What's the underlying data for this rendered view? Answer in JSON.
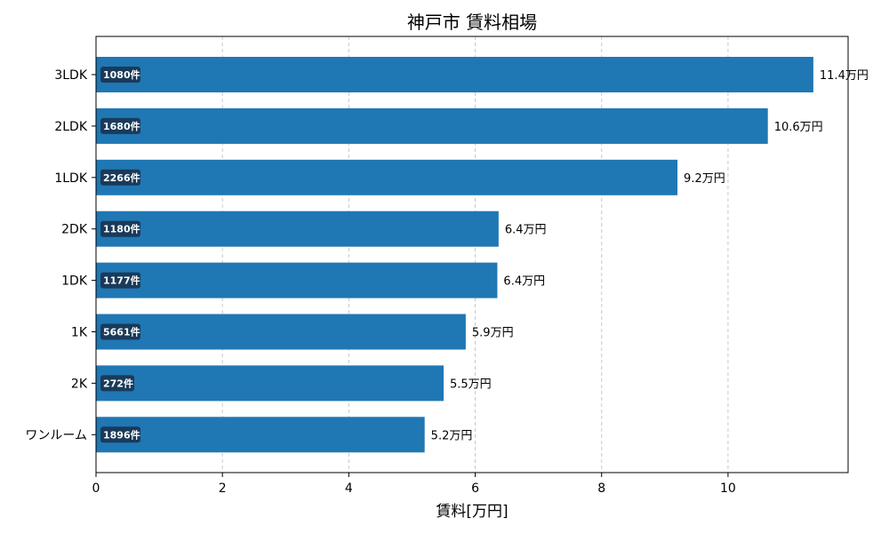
{
  "chart_data": {
    "type": "bar",
    "orientation": "horizontal",
    "title": "神戸市 賃料相場",
    "xlabel": "賃料[万円]",
    "ylabel": "",
    "xlim": [
      0,
      11.9
    ],
    "xticks": [
      0,
      2,
      4,
      6,
      8,
      10
    ],
    "grid": "x",
    "bar_color": "#1f77b4",
    "count_badge_color": "#1a3a5a",
    "categories": [
      "3LDK",
      "2LDK",
      "1LDK",
      "2DK",
      "1DK",
      "1K",
      "2K",
      "ワンルーム"
    ],
    "values": [
      11.35,
      10.63,
      9.2,
      6.37,
      6.35,
      5.85,
      5.5,
      5.2
    ],
    "value_labels": [
      "11.4万円",
      "10.6万円",
      "9.2万円",
      "6.4万円",
      "6.4万円",
      "5.9万円",
      "5.5万円",
      "5.2万円"
    ],
    "counts": [
      "1080件",
      "1680件",
      "2266件",
      "1180件",
      "1177件",
      "5661件",
      "272件",
      "1896件"
    ]
  }
}
